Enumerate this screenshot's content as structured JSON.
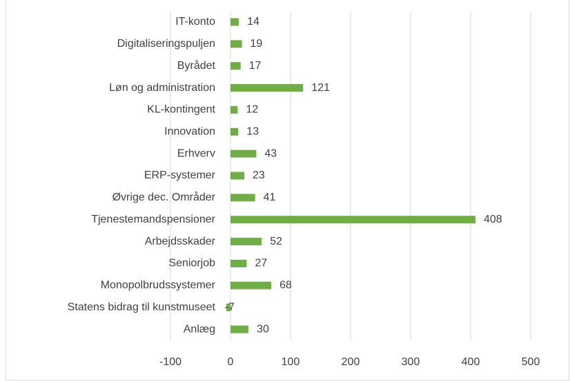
{
  "chart_data": {
    "type": "bar",
    "orientation": "horizontal",
    "categories": [
      "IT-konto",
      "Digitaliseringspuljen",
      "Byrådet",
      "Løn og administration",
      "KL-kontingent",
      "Innovation",
      "Erhverv",
      "ERP-systemer",
      "Øvrige dec. Områder",
      "Tjenestemandspensioner",
      "Arbejdsskader",
      "Seniorjob",
      "Monopolbrudssystemer",
      "Statens bidrag til kunstmuseet",
      "Anlæg"
    ],
    "values": [
      14,
      19,
      17,
      121,
      12,
      13,
      43,
      23,
      41,
      408,
      52,
      27,
      68,
      -7,
      30
    ],
    "color": "#70ad47",
    "xlim": [
      -100,
      500
    ],
    "xticks": [
      -100,
      0,
      100,
      200,
      300,
      400,
      500
    ],
    "grid": true
  }
}
